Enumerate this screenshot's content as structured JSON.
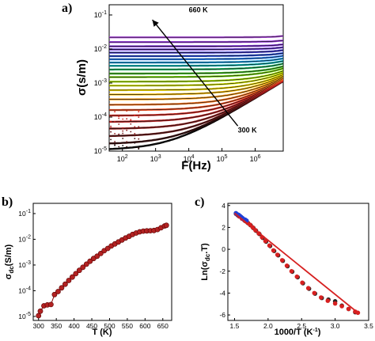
{
  "chart_data": [
    {
      "panel_label": "a)",
      "type": "line",
      "x_scale": "log",
      "y_scale": "log",
      "xlabel": "F(Hz)",
      "ylabel": "σ(s/m)",
      "xlim": [
        40,
        7000000
      ],
      "ylim": [
        1e-05,
        0.2
      ],
      "x_ticks": [
        {
          "value": 100,
          "mantissa": "10",
          "exponent": "2"
        },
        {
          "value": 1000,
          "mantissa": "10",
          "exponent": "3"
        },
        {
          "value": 10000,
          "mantissa": "10",
          "exponent": "4"
        },
        {
          "value": 100000,
          "mantissa": "10",
          "exponent": "5"
        },
        {
          "value": 1000000,
          "mantissa": "10",
          "exponent": "6"
        }
      ],
      "y_ticks": [
        {
          "value": 1e-05,
          "mantissa": "10",
          "exponent": "-5"
        },
        {
          "value": 0.0001,
          "mantissa": "10",
          "exponent": "-4"
        },
        {
          "value": 0.001,
          "mantissa": "10",
          "exponent": "-3"
        },
        {
          "value": 0.01,
          "mantissa": "10",
          "exponent": "-2"
        },
        {
          "value": 0.1,
          "mantissa": "10",
          "exponent": "-1"
        }
      ],
      "temperatures_K": [
        300,
        315,
        330,
        345,
        360,
        375,
        390,
        405,
        420,
        435,
        450,
        465,
        480,
        495,
        510,
        525,
        540,
        555,
        570,
        585,
        600,
        615,
        630,
        645,
        660
      ],
      "dc_conductivity": [
        1.07e-05,
        1.6e-05,
        2.7e-05,
        4.5e-05,
        7.2e-05,
        0.00011,
        0.00016,
        0.00023,
        0.00033,
        0.00046,
        0.00062,
        0.00084,
        0.0011,
        0.0015,
        0.0019,
        0.0025,
        0.0032,
        0.004,
        0.005,
        0.0062,
        0.0078,
        0.0097,
        0.012,
        0.016,
        0.022
      ],
      "dispersion_exponent": 0.6,
      "crossover_frequency_at_300K": 3000,
      "annotations": [
        {
          "text": "660 K",
          "at": [
            10000,
            0.12
          ]
        },
        {
          "text": "300 K",
          "at": [
            300000,
            3.5e-05
          ]
        }
      ],
      "arrow": {
        "from": [
          300000,
          5.5e-05
        ],
        "to": [
          800,
          0.072
        ]
      },
      "grid": false,
      "colors": [
        "#000000",
        "#5a1010",
        "#9b1c1c",
        "#d62020",
        "#ff5f1f",
        "#ff9f1a",
        "#ffd700",
        "#d8f000",
        "#7fdc00",
        "#2eb82e",
        "#00b3b3",
        "#1e90ff",
        "#1f3fd6",
        "#5b2fcf",
        "#8a2be2",
        "#b04fe0"
      ],
      "fit_line_color": "#111111"
    },
    {
      "panel_label": "b)",
      "type": "scatter",
      "y_scale": "log",
      "xlabel": "T (K)",
      "ylabel_main": "σ",
      "ylabel_sub": "dc",
      "ylabel_rest": "(S/m)",
      "xlim": [
        285,
        675
      ],
      "ylim": [
        7e-06,
        0.25
      ],
      "x_ticks": [
        300,
        350,
        400,
        450,
        500,
        550,
        600,
        650
      ],
      "y_ticks": [
        {
          "value": 1e-05,
          "mantissa": "10",
          "exponent": "-5"
        },
        {
          "value": 0.0001,
          "mantissa": "10",
          "exponent": "-4"
        },
        {
          "value": 0.001,
          "mantissa": "10",
          "exponent": "-3"
        },
        {
          "value": 0.01,
          "mantissa": "10",
          "exponent": "-2"
        },
        {
          "value": 0.1,
          "mantissa": "10",
          "exponent": "-1"
        }
      ],
      "x": [
        300,
        305,
        315,
        325,
        335,
        345,
        355,
        365,
        375,
        385,
        395,
        405,
        415,
        425,
        435,
        445,
        455,
        465,
        475,
        485,
        495,
        505,
        515,
        525,
        535,
        545,
        555,
        565,
        575,
        585,
        595,
        605,
        615,
        625,
        635,
        645,
        655,
        660
      ],
      "y": [
        1.07e-05,
        1.6e-05,
        2.6e-05,
        2.8e-05,
        2.9e-05,
        7.1e-05,
        9.3e-05,
        0.00013,
        0.00018,
        0.00025,
        0.00034,
        0.00046,
        0.00062,
        0.00082,
        0.00108,
        0.0014,
        0.0018,
        0.0022,
        0.0028,
        0.0036,
        0.0044,
        0.0055,
        0.0066,
        0.0079,
        0.0094,
        0.0112,
        0.013,
        0.0155,
        0.0175,
        0.0195,
        0.0208,
        0.0212,
        0.0215,
        0.022,
        0.024,
        0.028,
        0.033,
        0.035
      ],
      "marker_color": "#b22222",
      "line_color": "#8b0000",
      "grid": false
    },
    {
      "panel_label": "c)",
      "type": "scatter",
      "xlabel_main": "1000/T (K",
      "xlabel_sup": "-1",
      "xlabel_end": ")",
      "ylabel_main": "Ln(σ",
      "ylabel_sub": "dc",
      "ylabel_rest": ".T)",
      "xlim": [
        1.4,
        3.5
      ],
      "ylim": [
        -6.5,
        4.2
      ],
      "x_ticks": [
        1.5,
        2.0,
        2.5,
        3.0,
        3.5
      ],
      "x_tick_labels": [
        "1.5",
        "2.0",
        "2.5",
        "3.0",
        "3.5"
      ],
      "y_ticks": [
        -6,
        -4,
        -2,
        0,
        2,
        4
      ],
      "series": [
        {
          "color": "#1f3fd6",
          "x": [
            1.52,
            1.54,
            1.56,
            1.58,
            1.6,
            1.62,
            1.64,
            1.66,
            1.68
          ],
          "y": [
            3.3,
            3.2,
            3.15,
            3.05,
            2.95,
            2.85,
            2.75,
            2.7,
            2.62
          ]
        },
        {
          "color": "#222222",
          "x": [
            1.52,
            1.55,
            1.58,
            1.61,
            1.64,
            1.67,
            1.7,
            1.74,
            1.78,
            1.82,
            1.87,
            1.92,
            1.97,
            2.03,
            2.09,
            2.15,
            2.22,
            2.29,
            2.36,
            2.44,
            2.52,
            2.61,
            2.7,
            2.8,
            2.9,
            3.0,
            3.1,
            3.2,
            3.3
          ],
          "y": [
            3.25,
            3.1,
            3.0,
            2.85,
            2.7,
            2.55,
            2.4,
            2.2,
            1.95,
            1.7,
            1.4,
            1.05,
            0.7,
            0.3,
            -0.15,
            -0.55,
            -1.05,
            -1.55,
            -2.05,
            -2.55,
            -3.1,
            -3.6,
            -4.05,
            -4.45,
            -4.6,
            -4.75,
            -5.15,
            -5.45,
            -5.75
          ]
        },
        {
          "color": "#d62020",
          "x": [
            1.53,
            1.57,
            1.61,
            1.65,
            1.69,
            1.73,
            1.77,
            1.81,
            1.86,
            1.91,
            1.96,
            2.02,
            2.08,
            2.14,
            2.21,
            2.28,
            2.35,
            2.43,
            2.51,
            2.6,
            2.69,
            2.79,
            2.89,
            3.0,
            3.1,
            3.2,
            3.3,
            3.34
          ],
          "y": [
            3.2,
            3.0,
            2.8,
            2.62,
            2.45,
            2.25,
            2.0,
            1.75,
            1.45,
            1.1,
            0.75,
            0.35,
            -0.1,
            -0.5,
            -1.0,
            -1.5,
            -2.0,
            -2.5,
            -3.05,
            -3.55,
            -4.0,
            -4.4,
            -4.7,
            -4.95,
            -5.2,
            -5.45,
            -5.7,
            -5.8
          ]
        }
      ],
      "fit_line": {
        "x": [
          1.5,
          3.35
        ],
        "y": [
          3.3,
          -5.85
        ],
        "color": "#d62020"
      },
      "grid": false
    }
  ]
}
